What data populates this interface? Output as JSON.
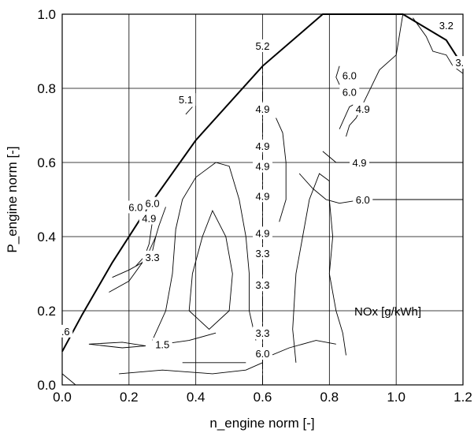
{
  "chart_data": {
    "type": "contour",
    "xlabel": "n_engine norm [-]",
    "ylabel": "P_engine norm [-]",
    "xlim": [
      0,
      1.2
    ],
    "ylim": [
      0,
      1.0
    ],
    "xticks": [
      "0.0",
      "0.2",
      "0.4",
      "0.6",
      "0.8",
      "1.0",
      "1.2"
    ],
    "yticks": [
      "0.0",
      "0.2",
      "0.4",
      "0.6",
      "0.8",
      "1.0"
    ],
    "grid": true,
    "legend_label": "NOx [g/kWh]",
    "boundary": [
      {
        "x": 0.0,
        "y": 0.09
      },
      {
        "x": 0.06,
        "y": 0.19
      },
      {
        "x": 0.15,
        "y": 0.33
      },
      {
        "x": 0.25,
        "y": 0.47
      },
      {
        "x": 0.4,
        "y": 0.66
      },
      {
        "x": 0.6,
        "y": 0.86
      },
      {
        "x": 0.78,
        "y": 1.0
      },
      {
        "x": 1.02,
        "y": 1.0
      },
      {
        "x": 1.15,
        "y": 0.93
      },
      {
        "x": 1.2,
        "y": 0.86
      }
    ],
    "contours": [
      {
        "level": "1.5",
        "points": [
          {
            "x": 0.08,
            "y": 0.11
          },
          {
            "x": 0.18,
            "y": 0.115
          },
          {
            "x": 0.25,
            "y": 0.105
          },
          {
            "x": 0.18,
            "y": 0.1
          },
          {
            "x": 0.08,
            "y": 0.11
          }
        ]
      },
      {
        "level": "1.5",
        "points": [
          {
            "x": 0.3,
            "y": 0.11
          },
          {
            "x": 0.38,
            "y": 0.12
          },
          {
            "x": 0.46,
            "y": 0.14
          }
        ]
      },
      {
        "level": "3.3",
        "points": [
          {
            "x": 0.15,
            "y": 0.29
          },
          {
            "x": 0.2,
            "y": 0.31
          },
          {
            "x": 0.24,
            "y": 0.33
          },
          {
            "x": 0.27,
            "y": 0.36
          },
          {
            "x": 0.28,
            "y": 0.4
          }
        ]
      },
      {
        "level": "3.3",
        "points": [
          {
            "x": 0.38,
            "y": 0.2
          },
          {
            "x": 0.39,
            "y": 0.3
          },
          {
            "x": 0.42,
            "y": 0.4
          },
          {
            "x": 0.45,
            "y": 0.47
          },
          {
            "x": 0.49,
            "y": 0.4
          },
          {
            "x": 0.51,
            "y": 0.3
          },
          {
            "x": 0.5,
            "y": 0.2
          },
          {
            "x": 0.44,
            "y": 0.15
          },
          {
            "x": 0.38,
            "y": 0.2
          }
        ]
      },
      {
        "level": "3.3",
        "points": [
          {
            "x": 0.36,
            "y": 0.06
          },
          {
            "x": 0.46,
            "y": 0.06
          },
          {
            "x": 0.55,
            "y": 0.06
          }
        ]
      },
      {
        "level": "4.9",
        "points": [
          {
            "x": 0.22,
            "y": 0.32
          },
          {
            "x": 0.26,
            "y": 0.36
          },
          {
            "x": 0.28,
            "y": 0.4
          },
          {
            "x": 0.29,
            "y": 0.43
          },
          {
            "x": 0.31,
            "y": 0.48
          }
        ]
      },
      {
        "level": "4.9",
        "points": [
          {
            "x": 0.27,
            "y": 0.12
          },
          {
            "x": 0.31,
            "y": 0.2
          },
          {
            "x": 0.33,
            "y": 0.3
          },
          {
            "x": 0.34,
            "y": 0.42
          },
          {
            "x": 0.36,
            "y": 0.5
          },
          {
            "x": 0.4,
            "y": 0.56
          },
          {
            "x": 0.46,
            "y": 0.6
          },
          {
            "x": 0.5,
            "y": 0.59
          },
          {
            "x": 0.53,
            "y": 0.5
          },
          {
            "x": 0.55,
            "y": 0.4
          },
          {
            "x": 0.56,
            "y": 0.3
          },
          {
            "x": 0.56,
            "y": 0.2
          },
          {
            "x": 0.58,
            "y": 0.12
          }
        ]
      },
      {
        "level": "4.9",
        "points": [
          {
            "x": 0.65,
            "y": 0.44
          },
          {
            "x": 0.67,
            "y": 0.5
          },
          {
            "x": 0.67,
            "y": 0.6
          },
          {
            "x": 0.66,
            "y": 0.68
          },
          {
            "x": 0.64,
            "y": 0.72
          }
        ]
      },
      {
        "level": "4.9",
        "points": [
          {
            "x": 0.78,
            "y": 0.63
          },
          {
            "x": 0.82,
            "y": 0.6
          },
          {
            "x": 0.88,
            "y": 0.6
          },
          {
            "x": 1.0,
            "y": 0.6
          },
          {
            "x": 1.2,
            "y": 0.6
          }
        ]
      },
      {
        "level": "4.9",
        "points": [
          {
            "x": 0.7,
            "y": 0.06
          },
          {
            "x": 0.69,
            "y": 0.15
          },
          {
            "x": 0.7,
            "y": 0.3
          },
          {
            "x": 0.72,
            "y": 0.4
          },
          {
            "x": 0.74,
            "y": 0.5
          },
          {
            "x": 0.77,
            "y": 0.57
          },
          {
            "x": 0.8,
            "y": 0.55
          },
          {
            "x": 0.8,
            "y": 0.5
          },
          {
            "x": 0.81,
            "y": 0.4
          },
          {
            "x": 0.8,
            "y": 0.3
          },
          {
            "x": 0.82,
            "y": 0.2
          },
          {
            "x": 0.84,
            "y": 0.14
          },
          {
            "x": 0.85,
            "y": 0.08
          }
        ]
      },
      {
        "level": "6.0",
        "points": [
          {
            "x": 0.14,
            "y": 0.25
          },
          {
            "x": 0.2,
            "y": 0.28
          },
          {
            "x": 0.24,
            "y": 0.33
          },
          {
            "x": 0.26,
            "y": 0.38
          },
          {
            "x": 0.27,
            "y": 0.44
          }
        ]
      },
      {
        "level": "6.0",
        "points": [
          {
            "x": 0.83,
            "y": 0.69
          },
          {
            "x": 0.86,
            "y": 0.75
          },
          {
            "x": 0.88,
            "y": 0.76
          }
        ]
      },
      {
        "level": "6.0",
        "points": [
          {
            "x": 0.83,
            "y": 0.81
          },
          {
            "x": 0.82,
            "y": 0.83
          },
          {
            "x": 0.83,
            "y": 0.86
          }
        ]
      },
      {
        "level": "6.0",
        "points": [
          {
            "x": 0.71,
            "y": 0.57
          },
          {
            "x": 0.75,
            "y": 0.53
          },
          {
            "x": 0.79,
            "y": 0.5
          },
          {
            "x": 0.83,
            "y": 0.49
          },
          {
            "x": 0.9,
            "y": 0.5
          },
          {
            "x": 1.05,
            "y": 0.5
          },
          {
            "x": 1.2,
            "y": 0.5
          }
        ]
      },
      {
        "level": "6.0",
        "points": [
          {
            "x": 0.17,
            "y": 0.03
          },
          {
            "x": 0.3,
            "y": 0.04
          },
          {
            "x": 0.45,
            "y": 0.03
          },
          {
            "x": 0.55,
            "y": 0.04
          },
          {
            "x": 0.6,
            "y": 0.06
          }
        ]
      },
      {
        "level": "6.0",
        "points": [
          {
            "x": 0.6,
            "y": 0.07
          },
          {
            "x": 0.68,
            "y": 0.1
          },
          {
            "x": 0.76,
            "y": 0.12
          },
          {
            "x": 0.82,
            "y": 0.11
          }
        ]
      },
      {
        "level": "6.0",
        "points": [
          {
            "x": 0.85,
            "y": 0.67
          },
          {
            "x": 0.86,
            "y": 0.7
          },
          {
            "x": 0.88,
            "y": 0.72
          },
          {
            "x": 0.95,
            "y": 0.85
          },
          {
            "x": 1.0,
            "y": 0.89
          },
          {
            "x": 1.02,
            "y": 1.0
          }
        ]
      },
      {
        "level": "3.2",
        "points": [
          {
            "x": 1.05,
            "y": 0.99
          },
          {
            "x": 1.09,
            "y": 0.94
          },
          {
            "x": 1.11,
            "y": 0.9
          },
          {
            "x": 1.15,
            "y": 0.89
          },
          {
            "x": 1.17,
            "y": 0.86
          },
          {
            "x": 1.2,
            "y": 0.84
          }
        ]
      },
      {
        "level": "3.2",
        "points": [
          {
            "x": 0.0,
            "y": 0.03
          },
          {
            "x": 0.04,
            "y": 0.0
          }
        ]
      },
      {
        "level": "5.1",
        "points": [
          {
            "x": 0.37,
            "y": 0.73
          },
          {
            "x": 0.39,
            "y": 0.75
          }
        ]
      }
    ],
    "dashed_line": {
      "x": 0.6,
      "y_from": 0.0,
      "y_to": 0.86
    },
    "labels": [
      {
        "text": "5.2",
        "x": 0.6,
        "y": 0.915
      },
      {
        "text": "5.1",
        "x": 0.37,
        "y": 0.77
      },
      {
        "text": "4.9",
        "x": 0.6,
        "y": 0.745
      },
      {
        "text": "4.9",
        "x": 0.6,
        "y": 0.645
      },
      {
        "text": "4.9",
        "x": 0.6,
        "y": 0.59
      },
      {
        "text": "4.9",
        "x": 0.6,
        "y": 0.51
      },
      {
        "text": "4.9",
        "x": 0.6,
        "y": 0.41
      },
      {
        "text": "3.3",
        "x": 0.6,
        "y": 0.355
      },
      {
        "text": "3.3",
        "x": 0.6,
        "y": 0.27
      },
      {
        "text": "3.3",
        "x": 0.6,
        "y": 0.14
      },
      {
        "text": "6.0",
        "x": 0.6,
        "y": 0.085
      },
      {
        "text": "6.0",
        "x": 0.86,
        "y": 0.835
      },
      {
        "text": "6.0",
        "x": 0.86,
        "y": 0.79
      },
      {
        "text": "4.9",
        "x": 0.9,
        "y": 0.745
      },
      {
        "text": "4.9",
        "x": 0.89,
        "y": 0.6
      },
      {
        "text": "6.0",
        "x": 0.9,
        "y": 0.5
      },
      {
        "text": "6.0",
        "x": 0.27,
        "y": 0.49
      },
      {
        "text": "6.0",
        "x": 0.22,
        "y": 0.48
      },
      {
        "text": "4.9",
        "x": 0.26,
        "y": 0.45
      },
      {
        "text": "3.3",
        "x": 0.27,
        "y": 0.345
      },
      {
        "text": "1.5",
        "x": 0.3,
        "y": 0.11
      },
      {
        "text": "3.2",
        "x": 1.15,
        "y": 0.97
      },
      {
        "text": "3.",
        "x": 1.19,
        "y": 0.87
      },
      {
        "text": ".6",
        "x": 0.01,
        "y": 0.145
      }
    ]
  }
}
